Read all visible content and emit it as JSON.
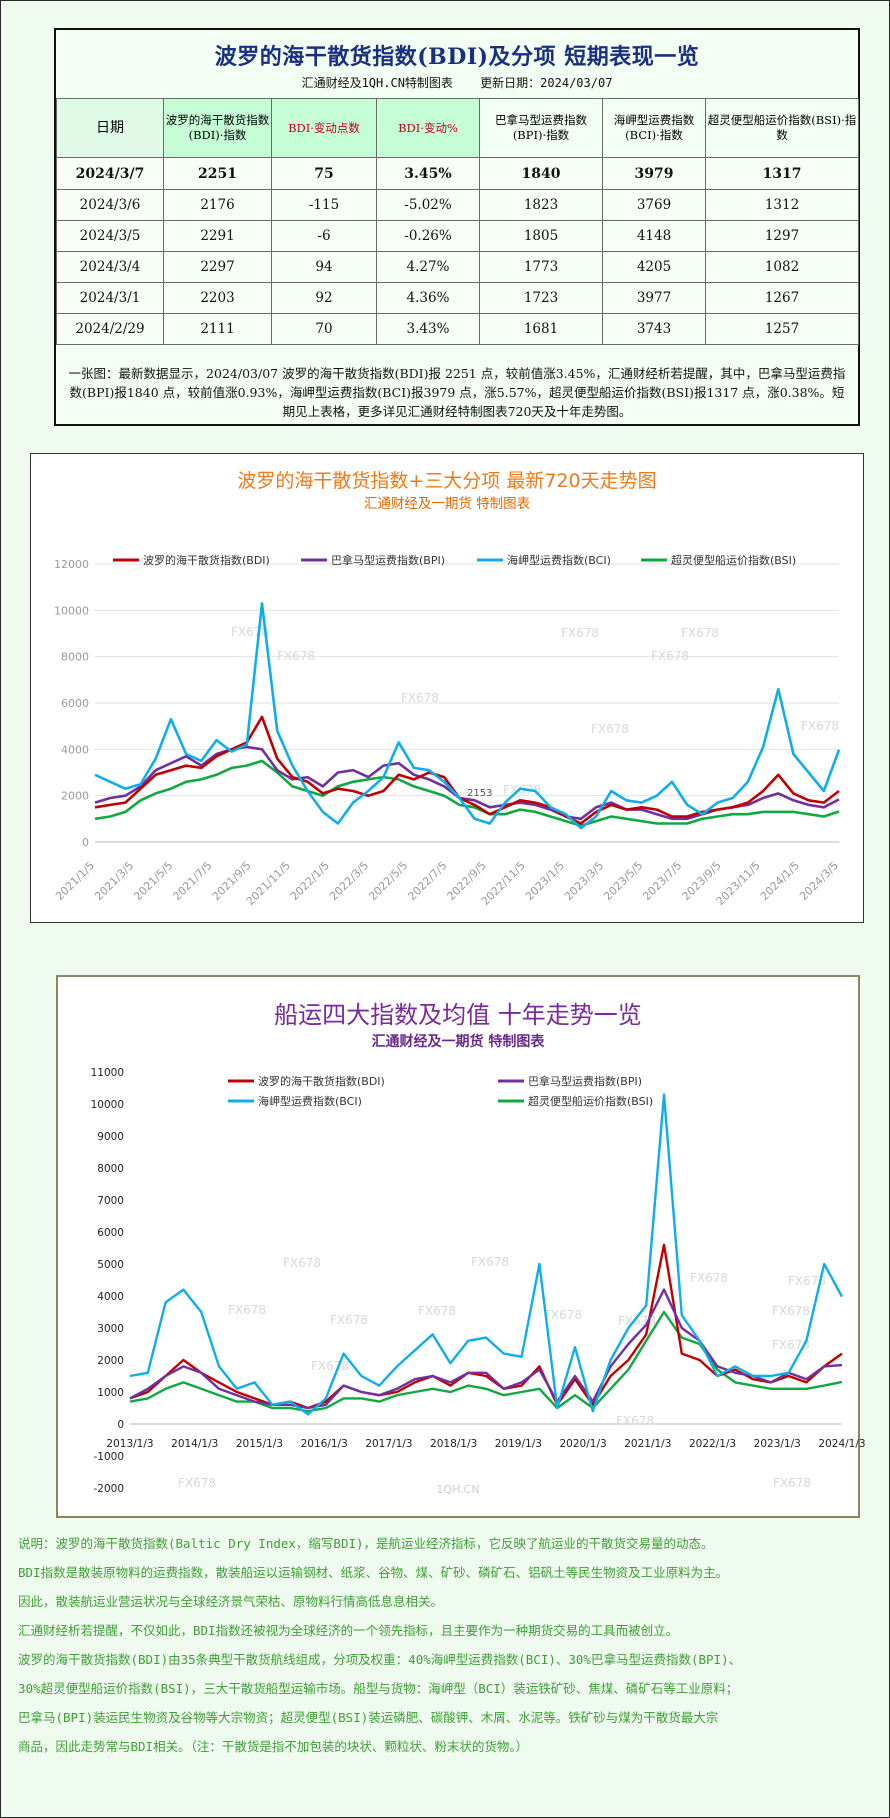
{
  "summary": {
    "title": "波罗的海干散货指数(BDI)及分项  短期表现一览",
    "maker": "汇通财经及1QH.CN特制图表",
    "update": "更新日期：2024/03/07",
    "headers": {
      "date": "日期",
      "bdi": "波罗的海干散货指数(BDI)·指数",
      "change_points": "BDI·变动点数",
      "change_pct": "BDI·变动%",
      "bpi": "巴拿马型运费指数(BPI)·指数",
      "bci": "海岬型运费指数(BCI)·指数",
      "bsi": "超灵便型船运价指数(BSI)·指数"
    },
    "rows": [
      {
        "date": "2024/3/7",
        "bdi": "2251",
        "pts": "75",
        "pct": "3.45%",
        "bpi": "1840",
        "bci": "3979",
        "bsi": "1317"
      },
      {
        "date": "2024/3/6",
        "bdi": "2176",
        "pts": "-115",
        "pct": "-5.02%",
        "bpi": "1823",
        "bci": "3769",
        "bsi": "1312"
      },
      {
        "date": "2024/3/5",
        "bdi": "2291",
        "pts": "-6",
        "pct": "-0.26%",
        "bpi": "1805",
        "bci": "4148",
        "bsi": "1297"
      },
      {
        "date": "2024/3/4",
        "bdi": "2297",
        "pts": "94",
        "pct": "4.27%",
        "bpi": "1773",
        "bci": "4205",
        "bsi": "1082"
      },
      {
        "date": "2024/3/1",
        "bdi": "2203",
        "pts": "92",
        "pct": "4.36%",
        "bpi": "1723",
        "bci": "3977",
        "bsi": "1267"
      },
      {
        "date": "2024/2/29",
        "bdi": "2111",
        "pts": "70",
        "pct": "3.43%",
        "bpi": "1681",
        "bci": "3743",
        "bsi": "1257"
      }
    ],
    "note": "一张图：最新数据显示，2024/03/07 波罗的海干散货指数(BDI)报 2251 点，较前值涨3.45%，汇通财经析若提醒，其中，巴拿马型运费指数(BPI)报1840 点，较前值涨0.93%，海岬型运费指数(BCI)报3979 点，涨5.57%，超灵便型船运价指数(BSI)报1317 点，涨0.38%。短期见上表格，更多详见汇通财经特制图表720天及十年走势图。"
  },
  "colors": {
    "bdi": "#c00000",
    "bpi": "#7030a0",
    "bci": "#10aee8",
    "bsi": "#10a840"
  },
  "chart_data": [
    {
      "type": "line",
      "title": "波罗的海干散货指数+三大分项  最新720天走势图",
      "subtitle": "汇通财经及一期货  特制图表",
      "ylim": [
        0,
        12000
      ],
      "yticks": [
        "0",
        "2000",
        "4000",
        "6000",
        "8000",
        "10000",
        "12000"
      ],
      "x_labels": [
        "2021/1/5",
        "2021/3/5",
        "2021/5/5",
        "2021/7/5",
        "2021/9/5",
        "2021/11/5",
        "2022/1/5",
        "2022/3/5",
        "2022/5/5",
        "2022/7/5",
        "2022/9/5",
        "2022/11/5",
        "2023/1/5",
        "2023/3/5",
        "2023/5/5",
        "2023/7/5",
        "2023/9/5",
        "2023/11/5",
        "2024/1/5",
        "2024/3/5"
      ],
      "annotation": "2153",
      "watermarks": [
        "FX678",
        "FX678",
        "FX678",
        "FX678",
        "FX678",
        "FX678",
        "FX678",
        "FX678",
        "FX678"
      ],
      "series": [
        {
          "name": "波罗的海干散货指数(BDI)",
          "key": "bdi",
          "values": [
            1500,
            1600,
            1700,
            2300,
            2900,
            3100,
            3300,
            3200,
            3700,
            4000,
            4300,
            5400,
            3600,
            2800,
            2600,
            2100,
            2300,
            2200,
            2000,
            2200,
            2900,
            2700,
            3000,
            2800,
            1900,
            1600,
            1200,
            1500,
            1800,
            1700,
            1500,
            1100,
            800,
            1300,
            1600,
            1400,
            1500,
            1400,
            1100,
            1100,
            1300,
            1400,
            1500,
            1700,
            2200,
            2900,
            2100,
            1800,
            1700,
            2200
          ]
        },
        {
          "name": "巴拿马型运费指数(BPI)",
          "key": "bpi",
          "values": [
            1700,
            1900,
            2000,
            2400,
            3100,
            3400,
            3700,
            3300,
            3800,
            4000,
            4100,
            4000,
            3100,
            2700,
            2800,
            2400,
            3000,
            3100,
            2800,
            3300,
            3400,
            2900,
            2700,
            2400,
            1900,
            1800,
            1500,
            1600,
            1700,
            1600,
            1400,
            1100,
            1000,
            1500,
            1700,
            1400,
            1400,
            1200,
            1000,
            1000,
            1200,
            1400,
            1500,
            1600,
            1900,
            2100,
            1800,
            1600,
            1500,
            1840
          ]
        },
        {
          "name": "海岬型运费指数(BCI)",
          "key": "bci",
          "values": [
            2900,
            2600,
            2300,
            2500,
            3600,
            5300,
            3800,
            3500,
            4400,
            3900,
            4200,
            10300,
            4800,
            3300,
            2200,
            1300,
            800,
            1700,
            2200,
            2800,
            4300,
            3200,
            3100,
            2600,
            1900,
            1000,
            800,
            1700,
            2300,
            2200,
            1500,
            1200,
            600,
            1100,
            2200,
            1800,
            1700,
            2000,
            2600,
            1600,
            1200,
            1700,
            1900,
            2600,
            4100,
            6600,
            3800,
            3000,
            2200,
            3979
          ]
        },
        {
          "name": "超灵便型船运价指数(BSI)",
          "key": "bsi",
          "values": [
            1000,
            1100,
            1300,
            1800,
            2100,
            2300,
            2600,
            2700,
            2900,
            3200,
            3300,
            3500,
            3000,
            2400,
            2200,
            2000,
            2400,
            2600,
            2700,
            2800,
            2700,
            2400,
            2200,
            2000,
            1600,
            1500,
            1200,
            1200,
            1400,
            1300,
            1100,
            900,
            700,
            900,
            1100,
            1000,
            900,
            800,
            800,
            800,
            1000,
            1100,
            1200,
            1200,
            1300,
            1300,
            1300,
            1200,
            1100,
            1317
          ]
        }
      ]
    },
    {
      "type": "line",
      "title": "船运四大指数及均值 十年走势一览",
      "subtitle": "汇通财经及一期货 特制图表",
      "ylim": [
        -2000,
        11000
      ],
      "yticks": [
        "-2000",
        "-1000",
        "0",
        "1000",
        "2000",
        "3000",
        "4000",
        "5000",
        "6000",
        "7000",
        "8000",
        "9000",
        "10000",
        "11000"
      ],
      "x_labels": [
        "2013/1/3",
        "2014/1/3",
        "2015/1/3",
        "2016/1/3",
        "2017/1/3",
        "2018/1/3",
        "2019/1/3",
        "2020/1/3",
        "2021/1/3",
        "2022/1/3",
        "2023/1/3",
        "2024/1/3"
      ],
      "watermarks": [
        "FX678",
        "FX678",
        "FX678",
        "FX678",
        "FX678",
        "FX678",
        "FX678",
        "FX678",
        "FX678",
        "FX678",
        "FX678",
        "FX678",
        "FX678",
        "FX678",
        "FX678"
      ],
      "footer_mark": "1QH.CN",
      "series": [
        {
          "name": "波罗的海干散货指数(BDI)",
          "key": "bdi",
          "values": [
            800,
            1000,
            1500,
            2000,
            1600,
            1300,
            1000,
            800,
            600,
            700,
            500,
            700,
            1200,
            1000,
            900,
            1000,
            1300,
            1500,
            1200,
            1600,
            1500,
            1100,
            1200,
            1800,
            600,
            1400,
            600,
            1500,
            2000,
            2800,
            5600,
            2200,
            2000,
            1500,
            1700,
            1400,
            1300,
            1500,
            1300,
            1800,
            2200
          ]
        },
        {
          "name": "巴拿马型运费指数(BPI)",
          "key": "bpi",
          "values": [
            800,
            1100,
            1500,
            1800,
            1600,
            1100,
            900,
            700,
            600,
            600,
            500,
            600,
            1200,
            1000,
            900,
            1100,
            1400,
            1500,
            1300,
            1600,
            1600,
            1100,
            1300,
            1700,
            700,
            1500,
            700,
            1800,
            2500,
            3100,
            4200,
            3000,
            2600,
            1800,
            1600,
            1500,
            1300,
            1600,
            1400,
            1800,
            1840
          ]
        },
        {
          "name": "海岬型运费指数(BCI)",
          "key": "bci",
          "values": [
            1500,
            1600,
            3800,
            4200,
            3500,
            1800,
            1100,
            1300,
            600,
            700,
            300,
            800,
            2200,
            1500,
            1200,
            1800,
            2300,
            2800,
            1900,
            2600,
            2700,
            2200,
            2100,
            5000,
            500,
            2400,
            400,
            2000,
            3000,
            3700,
            10300,
            3400,
            2600,
            1500,
            1800,
            1500,
            1500,
            1600,
            2600,
            5000,
            3979
          ]
        },
        {
          "name": "超灵便型船运价指数(BSI)",
          "key": "bsi",
          "values": [
            700,
            800,
            1100,
            1300,
            1100,
            900,
            700,
            700,
            500,
            500,
            400,
            500,
            800,
            800,
            700,
            900,
            1000,
            1100,
            1000,
            1200,
            1100,
            900,
            1000,
            1100,
            500,
            900,
            500,
            1100,
            1700,
            2600,
            3500,
            2700,
            2500,
            1700,
            1300,
            1200,
            1100,
            1100,
            1100,
            1200,
            1317
          ]
        }
      ]
    }
  ],
  "notes": [
    "说明：波罗的海干散货指数(Baltic Dry Index，缩写BDI)，是航运业经济指标，它反映了航运业的干散货交易量的动态。",
    "BDI指数是散装原物料的运费指数，散装船运以运输钢材、纸浆、谷物、煤、矿砂、磷矿石、铝矾土等民生物资及工业原料为主。",
    "因此，散装航运业营运状况与全球经济景气荣枯、原物料行情高低息息相关。",
    "汇通财经析若提醒，不仅如此，BDI指数还被视为全球经济的一个领先指标，且主要作为一种期货交易的工具而被创立。",
    "波罗的海干散货指数(BDI)由35条典型干散货航线组成，分项及权重：40%海岬型运费指数(BCI)、30%巴拿马型运费指数(BPI)、",
    "30%超灵便型船运价指数(BSI)，三大干散货船型运输市场。船型与货物：海岬型（BCI）装运铁矿砂、焦煤、磷矿石等工业原料；",
    "巴拿马(BPI)装运民生物资及谷物等大宗物资；超灵便型(BSI)装运磷肥、碳酸钾、木屑、水泥等。铁矿砂与煤为干散货最大宗",
    "商品，因此走势常与BDI相关。（注：干散货是指不加包装的块状、颗粒状、粉末状的货物。）"
  ]
}
